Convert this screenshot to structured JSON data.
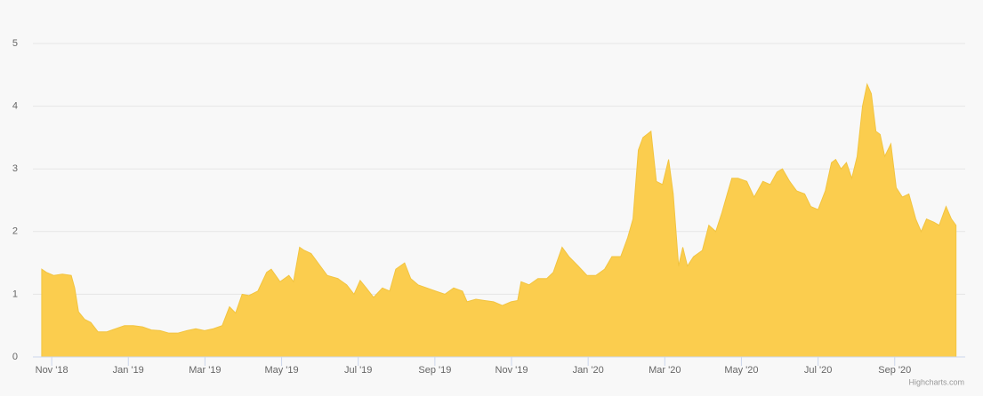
{
  "chart_data": {
    "type": "area",
    "color": "#fbcd4e",
    "line_color": "#f2c440",
    "grid": true,
    "credits": "Highcharts.com",
    "x": [
      -0.26,
      -0.14,
      0.05,
      0.28,
      0.51,
      0.6,
      0.7,
      0.86,
      1.02,
      1.21,
      1.44,
      1.67,
      1.9,
      2.13,
      2.37,
      2.6,
      2.83,
      3.06,
      3.29,
      3.53,
      3.76,
      3.99,
      4.22,
      4.45,
      4.64,
      4.8,
      4.97,
      5.15,
      5.38,
      5.61,
      5.73,
      5.96,
      6.19,
      6.31,
      6.47,
      6.59,
      6.77,
      7.01,
      7.19,
      7.47,
      7.7,
      7.89,
      8.05,
      8.21,
      8.4,
      8.63,
      8.82,
      8.98,
      9.21,
      9.37,
      9.56,
      9.79,
      10.02,
      10.26,
      10.49,
      10.72,
      10.84,
      11.07,
      11.3,
      11.53,
      11.76,
      11.99,
      12.16,
      12.25,
      12.46,
      12.69,
      12.92,
      13.09,
      13.32,
      13.5,
      13.74,
      13.97,
      14.2,
      14.43,
      14.62,
      14.85,
      15.03,
      15.17,
      15.31,
      15.43,
      15.64,
      15.78,
      15.94,
      16.1,
      16.22,
      16.36,
      16.47,
      16.59,
      16.75,
      16.98,
      17.15,
      17.33,
      17.49,
      17.63,
      17.75,
      17.91,
      18.14,
      18.33,
      18.56,
      18.75,
      18.93,
      19.07,
      19.26,
      19.44,
      19.65,
      19.81,
      20.0,
      20.19,
      20.35,
      20.46,
      20.6,
      20.74,
      20.88,
      21.02,
      21.16,
      21.28,
      21.39,
      21.51,
      21.62,
      21.74,
      21.9,
      22.04,
      22.2,
      22.37,
      22.55,
      22.69,
      22.83,
      23.02,
      23.16,
      23.34,
      23.48,
      23.6
    ],
    "values": [
      1.4,
      1.35,
      1.3,
      1.32,
      1.3,
      1.1,
      0.72,
      0.6,
      0.55,
      0.4,
      0.4,
      0.45,
      0.5,
      0.5,
      0.48,
      0.43,
      0.42,
      0.38,
      0.38,
      0.42,
      0.45,
      0.42,
      0.45,
      0.5,
      0.8,
      0.7,
      1.0,
      0.98,
      1.05,
      1.35,
      1.4,
      1.2,
      1.3,
      1.2,
      1.75,
      1.7,
      1.65,
      1.45,
      1.3,
      1.25,
      1.15,
      1.0,
      1.22,
      1.1,
      0.95,
      1.1,
      1.05,
      1.4,
      1.5,
      1.25,
      1.15,
      1.1,
      1.05,
      1.0,
      1.1,
      1.05,
      0.88,
      0.92,
      0.9,
      0.88,
      0.82,
      0.88,
      0.9,
      1.2,
      1.15,
      1.25,
      1.25,
      1.35,
      1.75,
      1.6,
      1.45,
      1.3,
      1.3,
      1.4,
      1.6,
      1.6,
      1.9,
      2.2,
      3.3,
      3.5,
      3.6,
      2.8,
      2.75,
      3.15,
      2.6,
      1.45,
      1.75,
      1.45,
      1.6,
      1.7,
      2.1,
      2.0,
      2.3,
      2.6,
      2.85,
      2.85,
      2.8,
      2.55,
      2.8,
      2.75,
      2.95,
      3.0,
      2.8,
      2.65,
      2.6,
      2.4,
      2.35,
      2.65,
      3.1,
      3.15,
      3.0,
      3.1,
      2.85,
      3.2,
      4.0,
      4.35,
      4.2,
      3.6,
      3.55,
      3.2,
      3.4,
      2.7,
      2.55,
      2.6,
      2.2,
      2.0,
      2.2,
      2.15,
      2.1,
      2.4,
      2.2,
      2.1
    ],
    "xlim": [
      -0.49,
      23.84
    ],
    "xticks": [
      {
        "value": 0,
        "label": "Nov '18"
      },
      {
        "value": 2,
        "label": "Jan '19"
      },
      {
        "value": 4,
        "label": "Mar '19"
      },
      {
        "value": 6,
        "label": "May '19"
      },
      {
        "value": 8,
        "label": "Jul '19"
      },
      {
        "value": 10,
        "label": "Sep '19"
      },
      {
        "value": 12,
        "label": "Nov '19"
      },
      {
        "value": 14,
        "label": "Jan '20"
      },
      {
        "value": 16,
        "label": "Mar '20"
      },
      {
        "value": 18,
        "label": "May '20"
      },
      {
        "value": 20,
        "label": "Jul '20"
      },
      {
        "value": 22,
        "label": "Sep '20"
      }
    ],
    "ylim": [
      0,
      5
    ],
    "yticks": [
      0,
      1,
      2,
      3,
      4,
      5
    ]
  }
}
